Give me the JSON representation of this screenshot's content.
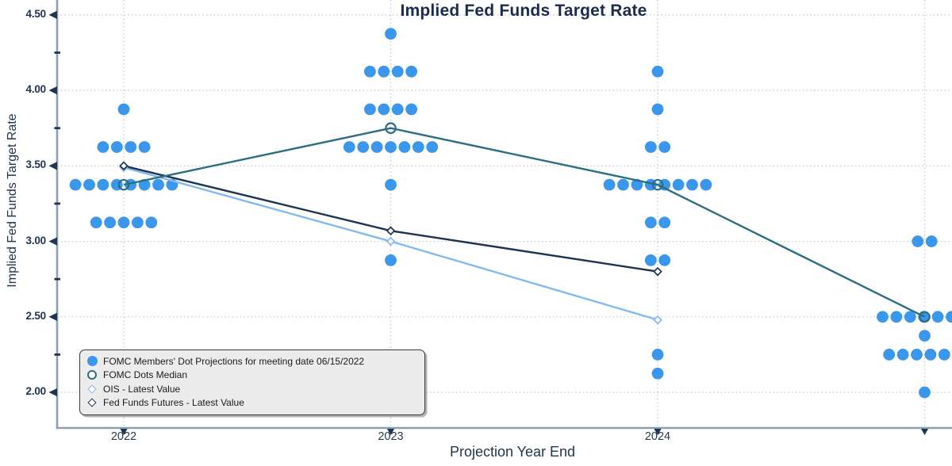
{
  "title": {
    "text": "Implied Fed Funds Target Rate"
  },
  "y_axis": {
    "label": "Implied Fed Funds Target Rate",
    "ticks": [
      "4.50",
      "4.00",
      "3.50",
      "3.00",
      "2.50",
      "2.00"
    ]
  },
  "x_axis": {
    "label": "Projection Year End",
    "ticks": [
      "2022",
      "2023",
      "2024",
      ""
    ]
  },
  "legend": {
    "items": [
      {
        "label": "FOMC Members' Dot Projections for meeting date 06/15/2022",
        "marker": "filled-circle",
        "color": "#3b97ec"
      },
      {
        "label": "FOMC Dots Median",
        "marker": "open-circle",
        "color": "#2b6f80"
      },
      {
        "label": "OIS - Latest Value",
        "marker": "open-diamond",
        "color": "#85b9ee"
      },
      {
        "label": "Fed Funds Futures - Latest Value",
        "marker": "open-diamond",
        "color": "#1b3450"
      }
    ]
  },
  "colors": {
    "dot_blue": "#3b97ec",
    "median_teal": "#2b6f80",
    "futures_navy": "#1b3450",
    "ois_light_blue": "#85b9ee",
    "grid": "#cccccc",
    "spine": "#8aa0b4",
    "tick": "#1f3550",
    "title_text": "#1a2c4e",
    "legend_bg": "#ececec",
    "legend_border": "#3a3a3a"
  },
  "chart_data": {
    "type": "scatter",
    "title": "Implied Fed Funds Target Rate",
    "xlabel": "Projection Year End",
    "ylabel": "Implied Fed Funds Target Rate",
    "x_categories": [
      "2022",
      "2023",
      "2024",
      ""
    ],
    "x_categories_note": "4th category tick exists at far right but its label is cut off at the image edge",
    "ylim_visible": [
      1.76,
      4.6
    ],
    "y_major_ticks": [
      4.5,
      4.0,
      3.5,
      3.0,
      2.5,
      2.0
    ],
    "y_minor_ticks": [
      4.25,
      3.75,
      3.25,
      2.75,
      2.25
    ],
    "grid": "dotted, both axes",
    "legend_position": "lower left",
    "fomc_dots": [
      {
        "category": "2022",
        "distribution": [
          {
            "rate": 3.875,
            "count": 1
          },
          {
            "rate": 3.625,
            "count": 4
          },
          {
            "rate": 3.375,
            "count": 8
          },
          {
            "rate": 3.125,
            "count": 5
          }
        ]
      },
      {
        "category": "2023",
        "distribution": [
          {
            "rate": 4.375,
            "count": 1
          },
          {
            "rate": 4.125,
            "count": 4
          },
          {
            "rate": 3.875,
            "count": 4
          },
          {
            "rate": 3.625,
            "count": 7
          },
          {
            "rate": 3.375,
            "count": 1
          },
          {
            "rate": 2.875,
            "count": 1
          }
        ]
      },
      {
        "category": "2024",
        "distribution": [
          {
            "rate": 4.125,
            "count": 1
          },
          {
            "rate": 3.875,
            "count": 1
          },
          {
            "rate": 3.625,
            "count": 2
          },
          {
            "rate": 3.375,
            "count": 8
          },
          {
            "rate": 3.125,
            "count": 2
          },
          {
            "rate": 2.875,
            "count": 2
          },
          {
            "rate": 2.25,
            "count": 1
          },
          {
            "rate": 2.125,
            "count": 1
          }
        ]
      },
      {
        "category": "",
        "distribution": [
          {
            "rate": 3.0,
            "count": 2
          },
          {
            "rate": 2.5,
            "count": 6
          },
          {
            "rate": 2.375,
            "count": 1
          },
          {
            "rate": 2.25,
            "count": 5
          },
          {
            "rate": 2.0,
            "count": 1
          }
        ]
      }
    ],
    "series": [
      {
        "name": "FOMC Dots Median",
        "marker": "open-circle",
        "color": "#2b6f80",
        "x_idx": [
          0,
          1,
          2,
          3
        ],
        "values": [
          3.375,
          3.75,
          3.375,
          2.5
        ]
      },
      {
        "name": "Fed Funds Futures - Latest Value",
        "marker": "open-diamond",
        "color": "#1b3450",
        "x_idx": [
          0,
          1,
          2
        ],
        "values": [
          3.5,
          3.07,
          2.8
        ]
      },
      {
        "name": "OIS - Latest Value",
        "marker": "open-diamond",
        "color": "#85b9ee",
        "x_idx": [
          0,
          1,
          2
        ],
        "values": [
          3.49,
          3.0,
          2.48
        ]
      }
    ]
  }
}
